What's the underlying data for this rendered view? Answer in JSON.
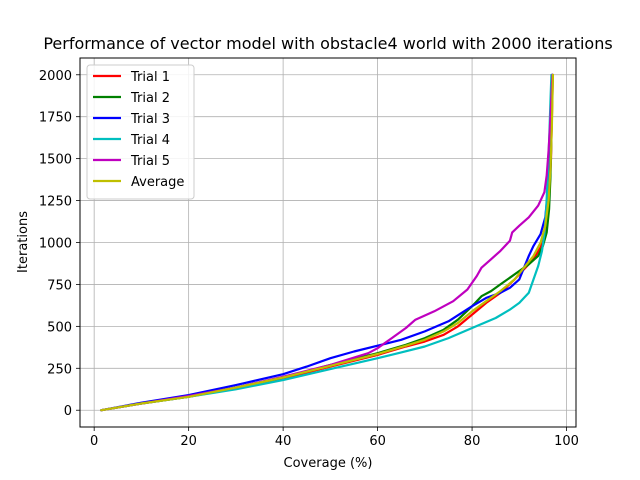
{
  "chart_data": {
    "type": "line",
    "title": "Performance of vector model with obstacle4 world with 2000 iterations",
    "xlabel": "Coverage (%)",
    "ylabel": "Iterations",
    "xlim": [
      -3,
      102
    ],
    "ylim": [
      -100,
      2100
    ],
    "xticks": [
      0,
      20,
      40,
      60,
      80,
      100
    ],
    "yticks": [
      0,
      250,
      500,
      750,
      1000,
      1250,
      1500,
      1750,
      2000
    ],
    "grid": true,
    "legend_position": "upper-left",
    "series": [
      {
        "name": "Trial 1",
        "color": "#ff0000",
        "points": [
          [
            1.5,
            0
          ],
          [
            10,
            40
          ],
          [
            20,
            80
          ],
          [
            30,
            130
          ],
          [
            40,
            190
          ],
          [
            50,
            260
          ],
          [
            60,
            330
          ],
          [
            66,
            380
          ],
          [
            70,
            410
          ],
          [
            74,
            450
          ],
          [
            77,
            500
          ],
          [
            80,
            570
          ],
          [
            83,
            640
          ],
          [
            86,
            700
          ],
          [
            89,
            780
          ],
          [
            91,
            840
          ],
          [
            93,
            900
          ],
          [
            94.5,
            970
          ],
          [
            95.5,
            1050
          ],
          [
            96,
            1150
          ],
          [
            96.4,
            1300
          ],
          [
            96.7,
            1500
          ],
          [
            96.9,
            1750
          ],
          [
            97.1,
            2000
          ]
        ]
      },
      {
        "name": "Trial 2",
        "color": "#008000",
        "points": [
          [
            1.5,
            0
          ],
          [
            10,
            40
          ],
          [
            20,
            80
          ],
          [
            30,
            135
          ],
          [
            40,
            195
          ],
          [
            50,
            270
          ],
          [
            60,
            340
          ],
          [
            66,
            390
          ],
          [
            70,
            430
          ],
          [
            74,
            480
          ],
          [
            77,
            540
          ],
          [
            80,
            620
          ],
          [
            82,
            680
          ],
          [
            84,
            710
          ],
          [
            86,
            750
          ],
          [
            88,
            790
          ],
          [
            90,
            830
          ],
          [
            92,
            870
          ],
          [
            94,
            920
          ],
          [
            95,
            980
          ],
          [
            95.8,
            1060
          ],
          [
            96.3,
            1200
          ],
          [
            96.6,
            1400
          ],
          [
            96.8,
            1650
          ],
          [
            97,
            2000
          ]
        ]
      },
      {
        "name": "Trial 3",
        "color": "#0000ff",
        "points": [
          [
            1.5,
            0
          ],
          [
            10,
            45
          ],
          [
            20,
            90
          ],
          [
            30,
            150
          ],
          [
            40,
            215
          ],
          [
            45,
            260
          ],
          [
            50,
            310
          ],
          [
            55,
            350
          ],
          [
            60,
            385
          ],
          [
            65,
            420
          ],
          [
            70,
            470
          ],
          [
            75,
            530
          ],
          [
            80,
            620
          ],
          [
            83,
            670
          ],
          [
            86,
            700
          ],
          [
            88,
            730
          ],
          [
            90,
            780
          ],
          [
            91,
            850
          ],
          [
            92,
            920
          ],
          [
            93,
            980
          ],
          [
            94.5,
            1050
          ],
          [
            95.5,
            1150
          ],
          [
            96,
            1300
          ],
          [
            96.4,
            1500
          ],
          [
            96.7,
            1750
          ],
          [
            97,
            2000
          ]
        ]
      },
      {
        "name": "Trial 4",
        "color": "#00bfbf",
        "points": [
          [
            1.5,
            0
          ],
          [
            10,
            40
          ],
          [
            20,
            80
          ],
          [
            30,
            125
          ],
          [
            40,
            180
          ],
          [
            50,
            245
          ],
          [
            60,
            310
          ],
          [
            65,
            345
          ],
          [
            70,
            380
          ],
          [
            75,
            430
          ],
          [
            80,
            490
          ],
          [
            85,
            550
          ],
          [
            88,
            600
          ],
          [
            90,
            640
          ],
          [
            92,
            700
          ],
          [
            93,
            780
          ],
          [
            94,
            860
          ],
          [
            94.8,
            950
          ],
          [
            95.3,
            1050
          ],
          [
            95.7,
            1200
          ],
          [
            96,
            1400
          ],
          [
            96.3,
            1600
          ],
          [
            96.6,
            1850
          ],
          [
            96.8,
            2000
          ]
        ]
      },
      {
        "name": "Trial 5",
        "color": "#bf00bf",
        "points": [
          [
            1.5,
            0
          ],
          [
            10,
            40
          ],
          [
            20,
            85
          ],
          [
            30,
            135
          ],
          [
            40,
            200
          ],
          [
            50,
            270
          ],
          [
            58,
            340
          ],
          [
            60,
            370
          ],
          [
            63,
            430
          ],
          [
            66,
            490
          ],
          [
            68,
            540
          ],
          [
            72,
            590
          ],
          [
            76,
            650
          ],
          [
            79,
            720
          ],
          [
            81,
            800
          ],
          [
            82,
            850
          ],
          [
            84,
            900
          ],
          [
            86,
            950
          ],
          [
            88,
            1010
          ],
          [
            88.5,
            1060
          ],
          [
            90,
            1100
          ],
          [
            92,
            1150
          ],
          [
            94,
            1220
          ],
          [
            95.3,
            1300
          ],
          [
            95.8,
            1400
          ],
          [
            96.2,
            1550
          ],
          [
            96.6,
            1750
          ],
          [
            97,
            2000
          ]
        ]
      },
      {
        "name": "Average",
        "color": "#bfbf00",
        "points": [
          [
            1.5,
            0
          ],
          [
            10,
            40
          ],
          [
            20,
            80
          ],
          [
            30,
            135
          ],
          [
            40,
            195
          ],
          [
            50,
            265
          ],
          [
            60,
            335
          ],
          [
            66,
            385
          ],
          [
            70,
            420
          ],
          [
            74,
            470
          ],
          [
            77,
            520
          ],
          [
            80,
            590
          ],
          [
            83,
            650
          ],
          [
            86,
            710
          ],
          [
            89,
            780
          ],
          [
            91,
            850
          ],
          [
            93,
            920
          ],
          [
            94.5,
            1000
          ],
          [
            95.5,
            1100
          ],
          [
            96.2,
            1250
          ],
          [
            96.6,
            1450
          ],
          [
            96.9,
            1700
          ],
          [
            97.1,
            2000
          ]
        ]
      }
    ]
  }
}
